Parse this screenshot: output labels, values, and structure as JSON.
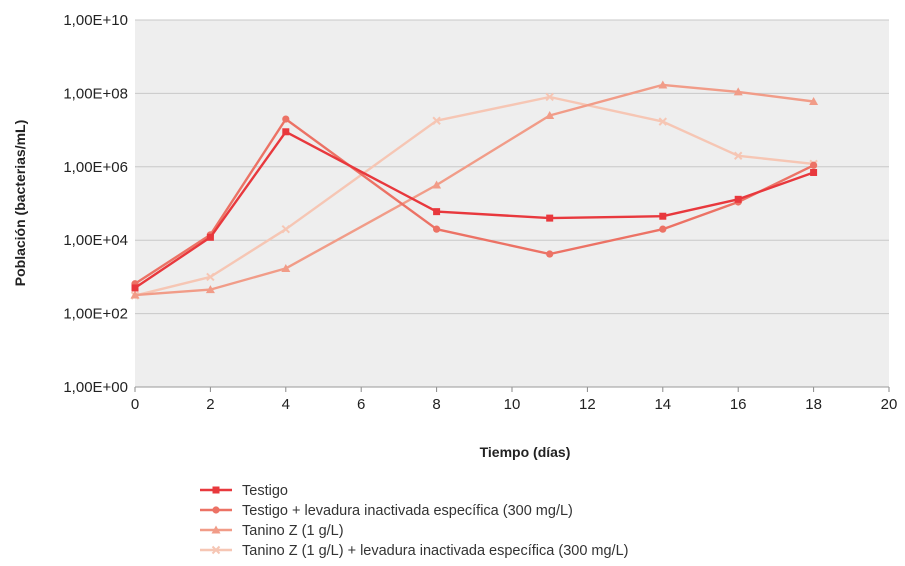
{
  "chart_data": {
    "type": "line",
    "title": "",
    "xlabel": "Tiempo (días)",
    "ylabel": "Población (bacterias/mL)",
    "xlim": [
      0,
      20
    ],
    "ylim": [
      1,
      10000000000
    ],
    "yscale": "log",
    "grid": true,
    "background_color": "#eeeeee",
    "x_ticks": [
      "0",
      "2",
      "4",
      "6",
      "8",
      "10",
      "12",
      "14",
      "16",
      "18",
      "20"
    ],
    "y_ticks": [
      "1,00E+00",
      "1,00E+02",
      "1,00E+04",
      "1,00E+06",
      "1,00E+08",
      "1,00E+10"
    ],
    "legend_position": "bottom",
    "series": [
      {
        "name": "Testigo",
        "color": "#e8383d",
        "marker": "square",
        "x": [
          0,
          2,
          4,
          8,
          11,
          14,
          16,
          18
        ],
        "y": [
          500,
          12000,
          9000000,
          60000,
          40000,
          45000,
          130000,
          700000
        ]
      },
      {
        "name": "Testigo + levadura inactivada específica (300 mg/L)",
        "color": "#ec7265",
        "marker": "circle",
        "x": [
          0,
          2,
          4,
          8,
          11,
          14,
          16,
          18
        ],
        "y": [
          650,
          14000,
          20000000,
          20000,
          4200,
          20000,
          110000,
          1100000
        ]
      },
      {
        "name": "Tanino Z (1 g/L)",
        "color": "#f19c88",
        "marker": "triangle",
        "x": [
          0,
          2,
          4,
          8,
          11,
          14,
          16,
          18
        ],
        "y": [
          320,
          450,
          1700,
          320000,
          25000000,
          170000000,
          110000000,
          60000000
        ]
      },
      {
        "name": "Tanino Z (1 g/L) + levadura inactivada específica (300 mg/L)",
        "color": "#f6c6b4",
        "marker": "x",
        "x": [
          0,
          2,
          4,
          8,
          11,
          14,
          16,
          18
        ],
        "y": [
          310,
          1000,
          20000,
          18000000,
          80000000,
          17000000,
          2000000,
          1200000
        ]
      }
    ]
  }
}
